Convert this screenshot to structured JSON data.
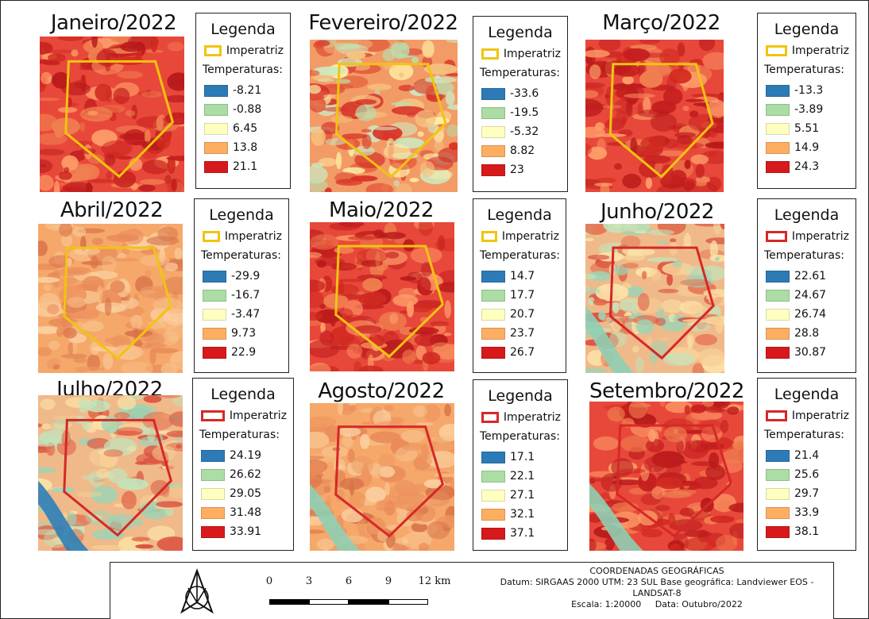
{
  "legend_common": {
    "title": "Legenda",
    "aoi_label": "Imperatriz",
    "temps_label": "Temperaturas:"
  },
  "months": [
    {
      "title": "Janeiro/2022",
      "aoi_color": "#f1c40f",
      "palette": "hot",
      "classes": [
        "-8.21",
        "-0.88",
        "6.45",
        "13.8",
        "21.1"
      ]
    },
    {
      "title": "Fevereiro/2022",
      "aoi_color": "#f1c40f",
      "palette": "mixed",
      "classes": [
        "-33.6",
        "-19.5",
        "-5.32",
        "8.82",
        "23"
      ]
    },
    {
      "title": "Março/2022",
      "aoi_color": "#f1c40f",
      "palette": "hot",
      "classes": [
        "-13.3",
        "-3.89",
        "5.51",
        "14.9",
        "24.3"
      ]
    },
    {
      "title": "Abril/2022",
      "aoi_color": "#f1c40f",
      "palette": "orange",
      "classes": [
        "-29.9",
        "-16.7",
        "-3.47",
        "9.73",
        "22.9"
      ]
    },
    {
      "title": "Maio/2022",
      "aoi_color": "#f1c40f",
      "palette": "hot",
      "classes": [
        "14.7",
        "17.7",
        "20.7",
        "23.7",
        "26.7"
      ]
    },
    {
      "title": "Junho/2022",
      "aoi_color": "#d62828",
      "palette": "cool",
      "classes": [
        "22.61",
        "24.67",
        "26.74",
        "28.8",
        "30.87"
      ]
    },
    {
      "title": "Julho/2022",
      "aoi_color": "#d62828",
      "palette": "cool",
      "classes": [
        "24.19",
        "26.62",
        "29.05",
        "31.48",
        "33.91"
      ]
    },
    {
      "title": "Agosto/2022",
      "aoi_color": "#d62828",
      "palette": "orange",
      "classes": [
        "17.1",
        "22.1",
        "27.1",
        "32.1",
        "37.1"
      ]
    },
    {
      "title": "Setembro/2022",
      "aoi_color": "#d62828",
      "palette": "hot",
      "classes": [
        "21.4",
        "25.6",
        "29.7",
        "33.9",
        "38.1"
      ]
    }
  ],
  "class_colors": [
    "#2c7bb6",
    "#abdda4",
    "#ffffbf",
    "#fdae61",
    "#d7191c"
  ],
  "scale": {
    "labels": [
      "0",
      "3",
      "6",
      "9",
      "12 km"
    ]
  },
  "coords": {
    "line1": "COORDENADAS GEOGRÁFICAS",
    "line2": "Datum: SIRGAAS 2000 UTM: 23 SUL Base geográfica: Landviewer EOS -",
    "line3": "LANDSAT-8",
    "line4": "Escala: 1:20000     Data: Outubro/2022"
  }
}
